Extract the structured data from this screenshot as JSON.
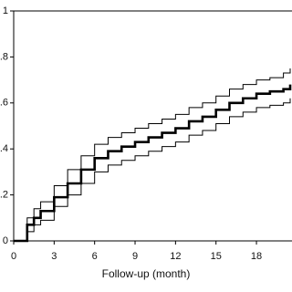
{
  "chart_data": {
    "type": "line",
    "step": true,
    "xlabel": "Follow-up (month)",
    "x": [
      0,
      1,
      1.5,
      2,
      3,
      4,
      5,
      6,
      7,
      8,
      9,
      10,
      11,
      12,
      13,
      14,
      15,
      16,
      17,
      18,
      19,
      20,
      20.5
    ],
    "series": [
      {
        "color": "#000000",
        "width": 2.6,
        "values": [
          0,
          0.07,
          0.1,
          0.13,
          0.19,
          0.25,
          0.31,
          0.36,
          0.39,
          0.41,
          0.43,
          0.45,
          0.47,
          0.49,
          0.52,
          0.54,
          0.57,
          0.6,
          0.62,
          0.64,
          0.65,
          0.66,
          0.68
        ]
      },
      {
        "color": "#000000",
        "width": 1,
        "values": [
          0,
          0.1,
          0.14,
          0.17,
          0.24,
          0.31,
          0.37,
          0.42,
          0.45,
          0.47,
          0.49,
          0.51,
          0.53,
          0.55,
          0.58,
          0.6,
          0.63,
          0.66,
          0.68,
          0.7,
          0.71,
          0.73,
          0.75
        ]
      },
      {
        "color": "#000000",
        "width": 1,
        "values": [
          0,
          0.04,
          0.07,
          0.09,
          0.15,
          0.2,
          0.25,
          0.3,
          0.33,
          0.35,
          0.37,
          0.39,
          0.41,
          0.43,
          0.46,
          0.48,
          0.51,
          0.54,
          0.56,
          0.58,
          0.59,
          0.6,
          0.62
        ]
      }
    ],
    "xlim": [
      0,
      20.5
    ],
    "xticks": [
      0,
      3,
      6,
      9,
      12,
      15,
      18
    ],
    "ylim": [
      0,
      1
    ],
    "yticks": [
      0,
      {
        "value": 0.2,
        "label": "0.2"
      },
      {
        "value": 0.4,
        "label": "0.4"
      },
      {
        "value": 0.6,
        "label": "0.6"
      },
      {
        "value": 0.8,
        "label": "0.8"
      },
      1
    ]
  }
}
